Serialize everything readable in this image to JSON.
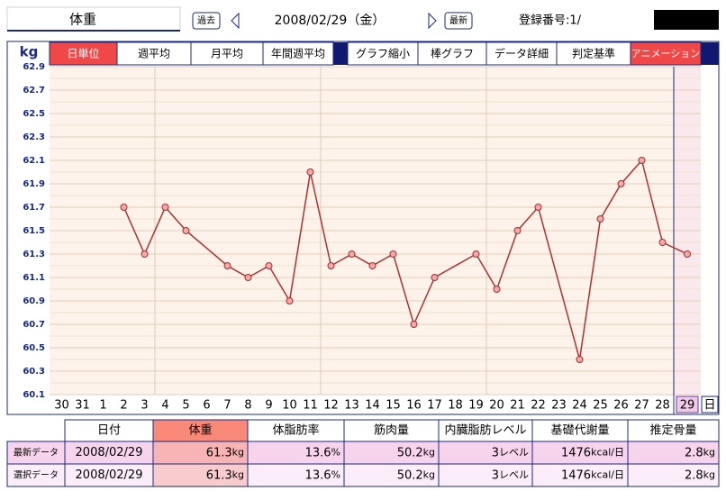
{
  "header": {
    "title": "体重",
    "prev": "過去",
    "date": "2008/02/29（金）",
    "latest": "最新",
    "id_label": "登録番号:1/"
  },
  "tabs": [
    "日単位",
    "週平均",
    "月平均",
    "年間週平均",
    "グラフ縮小",
    "棒グラフ",
    "データ詳細",
    "判定基準",
    "アニメーション"
  ],
  "chart_data": {
    "type": "line",
    "y_label": "kg",
    "categories": [
      "30",
      "31",
      "1",
      "2",
      "3",
      "4",
      "5",
      "6",
      "7",
      "8",
      "9",
      "10",
      "11",
      "12",
      "13",
      "14",
      "15",
      "16",
      "17",
      "18",
      "19",
      "20",
      "21",
      "22",
      "23",
      "24",
      "25",
      "26",
      "27",
      "28",
      "29",
      "日"
    ],
    "series": [
      {
        "color": "#b03030",
        "x": [
          "2",
          "3",
          "4",
          "5",
          "7",
          "8",
          "9",
          "10",
          "11",
          "12",
          "13",
          "14",
          "15",
          "16",
          "17",
          "19",
          "20",
          "21",
          "22",
          "24",
          "25",
          "26",
          "27",
          "28",
          "29"
        ],
        "values": [
          61.7,
          61.3,
          61.7,
          61.5,
          61.2,
          61.1,
          61.2,
          60.9,
          62.0,
          61.2,
          61.3,
          61.2,
          61.3,
          60.7,
          61.1,
          61.3,
          61.0,
          61.5,
          61.7,
          60.4,
          61.6,
          61.9,
          62.1,
          61.4,
          61.3
        ]
      }
    ],
    "ylim": [
      60.1,
      62.9
    ],
    "yticks": [
      60.1,
      60.3,
      60.5,
      60.7,
      60.9,
      61.1,
      61.3,
      61.5,
      61.7,
      61.9,
      62.1,
      62.3,
      62.5,
      62.7,
      62.9
    ],
    "grid": true
  },
  "table": {
    "columns": [
      "日付",
      "体重",
      "体脂肪率",
      "筋肉量",
      "内臓脂肪レベル",
      "基礎代謝量",
      "推定骨量"
    ],
    "rows": [
      {
        "label": "最新データ",
        "cells": [
          {
            "value": "2008/02/29"
          },
          {
            "value": "61.3",
            "unit": "kg"
          },
          {
            "value": "13.6",
            "unit": "%"
          },
          {
            "value": "50.2",
            "unit": "kg"
          },
          {
            "value": "3",
            "unit": "レベル"
          },
          {
            "value": "1476",
            "unit": "kcal/日"
          },
          {
            "value": "2.8",
            "unit": "kg"
          }
        ]
      },
      {
        "label": "選択データ",
        "cells": [
          {
            "value": "2008/02/29"
          },
          {
            "value": "61.3",
            "unit": "kg"
          },
          {
            "value": "13.6",
            "unit": "%"
          },
          {
            "value": "50.2",
            "unit": "kg"
          },
          {
            "value": "3",
            "unit": "レベル"
          },
          {
            "value": "1476",
            "unit": "kcal/日"
          },
          {
            "value": "2.8",
            "unit": "kg"
          }
        ]
      }
    ]
  }
}
